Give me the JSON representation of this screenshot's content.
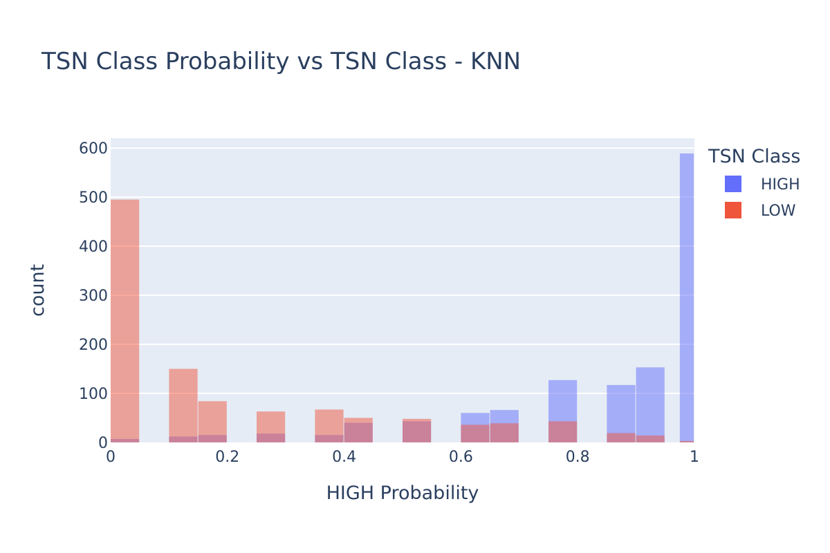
{
  "chart_data": {
    "type": "bar",
    "title": "TSN Class Probability vs TSN Class - KNN",
    "xlabel": "HIGH Probability",
    "ylabel": "count",
    "xlim": [
      0,
      1
    ],
    "ylim": [
      0,
      620
    ],
    "x_ticks": [
      0,
      0.2,
      0.4,
      0.6,
      0.8,
      1
    ],
    "x_tick_labels": [
      "0",
      "0.2",
      "0.4",
      "0.6",
      "0.8",
      "1"
    ],
    "y_ticks": [
      0,
      100,
      200,
      300,
      400,
      500,
      600
    ],
    "y_tick_labels": [
      "0",
      "100",
      "200",
      "300",
      "400",
      "500",
      "600"
    ],
    "bin_width": 0.05,
    "bin_starts": [
      0.0,
      0.1,
      0.15,
      0.25,
      0.35,
      0.4,
      0.5,
      0.6,
      0.65,
      0.75,
      0.85,
      0.9,
      1.0
    ],
    "barmode": "overlay",
    "grid": true,
    "legend_title": "TSN Class",
    "legend_position": "top-right",
    "series": [
      {
        "name": "HIGH",
        "color": "#636efa",
        "values": [
          7,
          12,
          15,
          18,
          15,
          40,
          43,
          60,
          66,
          127,
          117,
          153,
          589
        ]
      },
      {
        "name": "LOW",
        "color": "#ef553b",
        "values": [
          495,
          150,
          84,
          63,
          67,
          50,
          48,
          36,
          39,
          43,
          19,
          14,
          3
        ]
      }
    ]
  }
}
